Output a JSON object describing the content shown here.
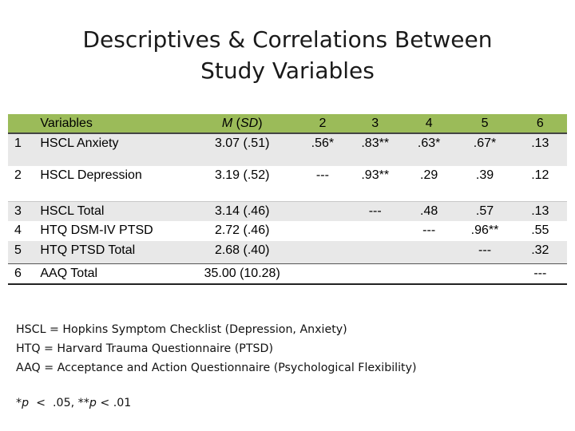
{
  "slide": {
    "title_line1": "Descriptives & Correlations Between",
    "title_line2": "Study Variables"
  },
  "table": {
    "header": {
      "num": "",
      "variables": "Variables",
      "m": "M",
      "sd_open": " (",
      "sd": "SD",
      "sd_close": ")",
      "col2": "2",
      "col3": "3",
      "col4": "4",
      "col5": "5",
      "col6": "6"
    },
    "rows": [
      {
        "num": "1",
        "name": "HSCL Anxiety",
        "msd": "3.07 (.51)",
        "c2": ".56*",
        "c3": ".83**",
        "c4": ".63*",
        "c5": ".67*",
        "c6": ".13"
      },
      {
        "num": "2",
        "name": "HSCL Depression",
        "msd": "3.19 (.52)",
        "c2": "---",
        "c3": ".93**",
        "c4": ".29",
        "c5": ".39",
        "c6": ".12"
      },
      {
        "num": "3",
        "name": "HSCL Total",
        "msd": "3.14 (.46)",
        "c2": "",
        "c3": "---",
        "c4": ".48",
        "c5": ".57",
        "c6": ".13"
      },
      {
        "num": "4",
        "name": "HTQ DSM-IV PTSD",
        "msd": "2.72 (.46)",
        "c2": "",
        "c3": "",
        "c4": "---",
        "c5": ".96**",
        "c6": ".55"
      },
      {
        "num": "5",
        "name": "HTQ PTSD Total",
        "msd": "2.68 (.40)",
        "c2": "",
        "c3": "",
        "c4": "",
        "c5": "---",
        "c6": ".32"
      },
      {
        "num": "6",
        "name": "AAQ Total",
        "msd": "35.00 (10.28)",
        "c2": "",
        "c3": "",
        "c4": "",
        "c5": "",
        "c6": "---"
      }
    ]
  },
  "notes": {
    "line1": "HSCL = Hopkins Symptom Checklist (Depression, Anxiety)",
    "line2": "HTQ = Harvard Trauma Questionnaire (PTSD)",
    "line3": "AAQ = Acceptance and Action Questionnaire (Psychological Flexibility)"
  },
  "significance": {
    "star1": "*",
    "p1": "p",
    "text1": "  <  .05, **",
    "p2": "p",
    "text2": " < .01"
  },
  "colors": {
    "header_green": "#9bbb59",
    "row_shade": "#e8e8e8"
  }
}
